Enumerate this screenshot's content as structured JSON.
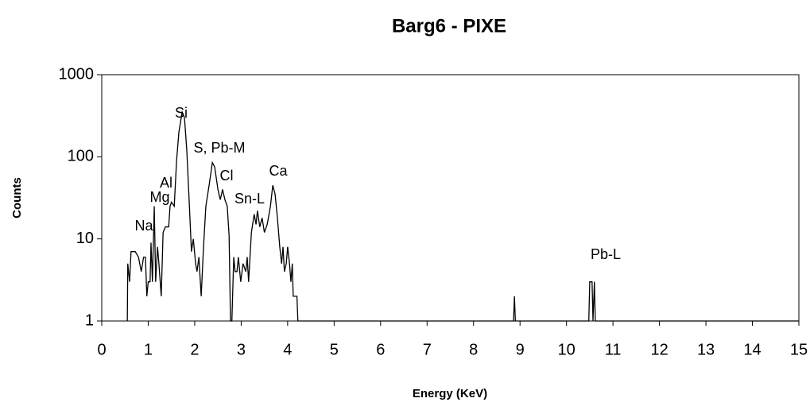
{
  "chart_data": {
    "type": "line",
    "title": "Barg6 - PIXE",
    "xlabel": "Energy (KeV)",
    "ylabel": "Counts",
    "log_y": true,
    "color": "#000000",
    "xlim": [
      0,
      15
    ],
    "xticks": [
      0,
      1,
      2,
      3,
      4,
      5,
      6,
      7,
      8,
      9,
      10,
      11,
      12,
      13,
      14,
      15
    ],
    "ylim": [
      1,
      1000
    ],
    "yticks": [
      1,
      10,
      100,
      1000
    ],
    "x": [
      0.55,
      0.56,
      0.6,
      0.63,
      0.72,
      0.79,
      0.85,
      0.9,
      0.94,
      0.97,
      1.0,
      1.04,
      1.06,
      1.09,
      1.13,
      1.16,
      1.2,
      1.23,
      1.28,
      1.32,
      1.37,
      1.44,
      1.47,
      1.5,
      1.56,
      1.61,
      1.66,
      1.73,
      1.78,
      1.83,
      1.88,
      1.93,
      1.97,
      2.02,
      2.05,
      2.09,
      2.14,
      2.19,
      2.24,
      2.31,
      2.38,
      2.43,
      2.5,
      2.55,
      2.6,
      2.65,
      2.7,
      2.74,
      2.77,
      2.8,
      2.84,
      2.87,
      2.91,
      2.94,
      2.99,
      3.04,
      3.1,
      3.13,
      3.16,
      3.22,
      3.28,
      3.32,
      3.35,
      3.4,
      3.45,
      3.5,
      3.56,
      3.63,
      3.68,
      3.73,
      3.78,
      3.83,
      3.87,
      3.9,
      3.93,
      3.97,
      4.0,
      4.04,
      4.07,
      4.1,
      4.12,
      4.2,
      4.22,
      8.86,
      8.88,
      8.9,
      10.48,
      10.5,
      10.55,
      10.57,
      10.6,
      10.62,
      15
    ],
    "values": [
      1,
      5,
      3,
      7,
      7,
      6,
      4,
      6,
      6,
      2,
      3,
      3,
      9,
      3,
      25,
      3,
      8,
      5,
      2,
      12,
      14,
      14,
      25,
      28,
      25,
      90,
      200,
      350,
      300,
      120,
      30,
      7,
      10,
      5,
      4,
      6,
      2,
      8,
      25,
      45,
      85,
      75,
      40,
      30,
      40,
      30,
      25,
      11,
      1,
      1,
      6,
      4,
      4,
      6,
      3,
      5,
      4,
      6,
      3,
      12,
      20,
      15,
      22,
      14,
      18,
      12,
      15,
      25,
      45,
      35,
      18,
      8,
      5,
      8,
      4,
      5,
      8,
      5,
      3,
      5,
      2,
      2,
      1,
      1,
      2,
      1,
      1,
      3,
      3,
      1,
      3,
      1,
      1
    ],
    "annotations": [
      "Na",
      "Mg",
      "Al",
      "Si",
      "S, Pb-M",
      "Cl",
      "Sn-L",
      "Ca",
      "Pb-L"
    ]
  }
}
